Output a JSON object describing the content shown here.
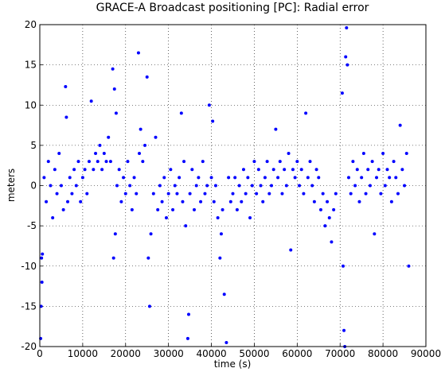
{
  "chart_data": {
    "type": "scatter",
    "title": "GRACE-A Broadcast positioning [PC]: Radial error",
    "xlabel": "time (s)",
    "ylabel": "meters",
    "xlim": [
      0,
      90000
    ],
    "xticks": [
      0,
      10000,
      20000,
      30000,
      40000,
      50000,
      60000,
      70000,
      80000,
      90000
    ],
    "ylim": [
      -20,
      20
    ],
    "yticks": [
      -20,
      -15,
      -10,
      -5,
      0,
      5,
      10,
      15,
      20
    ],
    "grid": true,
    "series": [
      {
        "color": "#0000ff",
        "x": [
          200,
          300,
          400,
          500,
          600,
          1000,
          1500,
          2000,
          2500,
          3000,
          3500,
          4000,
          4500,
          5000,
          5500,
          6000,
          6200,
          6500,
          7000,
          7500,
          8000,
          8500,
          9000,
          9500,
          10000,
          10500,
          11000,
          11500,
          12000,
          12500,
          13000,
          13500,
          14000,
          14500,
          15000,
          15500,
          16000,
          16500,
          17000,
          17200,
          17400,
          17600,
          17800,
          18000,
          18500,
          19000,
          19500,
          20000,
          20500,
          21000,
          21500,
          22000,
          22500,
          23000,
          23200,
          23500,
          24000,
          24500,
          25000,
          25300,
          25600,
          25900,
          26500,
          27000,
          27500,
          28000,
          28500,
          29000,
          29500,
          30000,
          30500,
          31000,
          31500,
          32000,
          32500,
          33000,
          33300,
          33600,
          34000,
          34500,
          34700,
          35000,
          35500,
          36000,
          36500,
          37000,
          37500,
          38000,
          38500,
          39000,
          39500,
          40000,
          40300,
          40600,
          41000,
          41500,
          42000,
          42300,
          42600,
          43000,
          43500,
          44000,
          44500,
          45000,
          45500,
          46000,
          46500,
          47000,
          47500,
          48000,
          48500,
          49000,
          49500,
          50000,
          50500,
          51000,
          51500,
          52000,
          52500,
          53000,
          53500,
          54000,
          54500,
          55000,
          55500,
          56000,
          56500,
          57000,
          57500,
          58000,
          58500,
          59000,
          59500,
          60000,
          60500,
          61000,
          61500,
          62000,
          62500,
          63000,
          63500,
          64000,
          64500,
          65000,
          65500,
          66000,
          66500,
          67000,
          67500,
          68000,
          68500,
          69000,
          70500,
          70700,
          70900,
          71100,
          71300,
          71500,
          71700,
          72000,
          72500,
          73000,
          73500,
          74000,
          74500,
          75000,
          75500,
          76000,
          76500,
          77000,
          77500,
          78000,
          78500,
          79000,
          79500,
          80000,
          80500,
          81000,
          81500,
          82000,
          82500,
          83000,
          83500,
          84000,
          84500,
          85000,
          85500,
          86000
        ],
        "values": [
          -19,
          -15,
          -9,
          -12,
          -8.5,
          1,
          -2,
          3,
          0,
          -4,
          2,
          -1,
          4,
          0,
          -3,
          12.3,
          8.5,
          -2,
          1,
          -1,
          2,
          0,
          3,
          -2,
          1,
          2,
          -1,
          3,
          10.5,
          2,
          4,
          3,
          5,
          2,
          4,
          3,
          6,
          3,
          14.5,
          -9,
          12,
          -6,
          9,
          0,
          2,
          -2,
          1,
          -1,
          3,
          0,
          -3,
          1,
          -1,
          16.5,
          4,
          7,
          3,
          5,
          13.5,
          -9,
          -15,
          -6,
          -1,
          6,
          -3,
          0,
          -2,
          1,
          -4,
          -1,
          2,
          -3,
          0,
          -1,
          1,
          9,
          -2,
          3,
          -5,
          -19,
          -16,
          -1,
          2,
          -3,
          0,
          1,
          -2,
          3,
          -1,
          0,
          10,
          1,
          8,
          -2,
          0,
          -4,
          -9,
          -6,
          -3,
          -13.5,
          -19.5,
          1,
          -2,
          -1,
          1,
          -3,
          0,
          -2,
          2,
          -1,
          1,
          -4,
          0,
          3,
          -1,
          2,
          0,
          -2,
          1,
          3,
          -1,
          0,
          2,
          7,
          1,
          3,
          -1,
          2,
          0,
          4,
          -8,
          2,
          1,
          3,
          0,
          2,
          -1,
          9,
          1,
          3,
          0,
          -2,
          2,
          1,
          -3,
          -1,
          -5,
          -2,
          -4,
          -7,
          -3,
          -1,
          11.5,
          -10,
          -18,
          -20,
          16,
          19.6,
          15,
          1,
          -1,
          3,
          0,
          2,
          -2,
          1,
          4,
          -1,
          2,
          0,
          3,
          -6,
          1,
          2,
          -1,
          4,
          0,
          2,
          1,
          -2,
          3,
          1,
          -1,
          7.5,
          2,
          0,
          4,
          -10
        ]
      }
    ]
  }
}
